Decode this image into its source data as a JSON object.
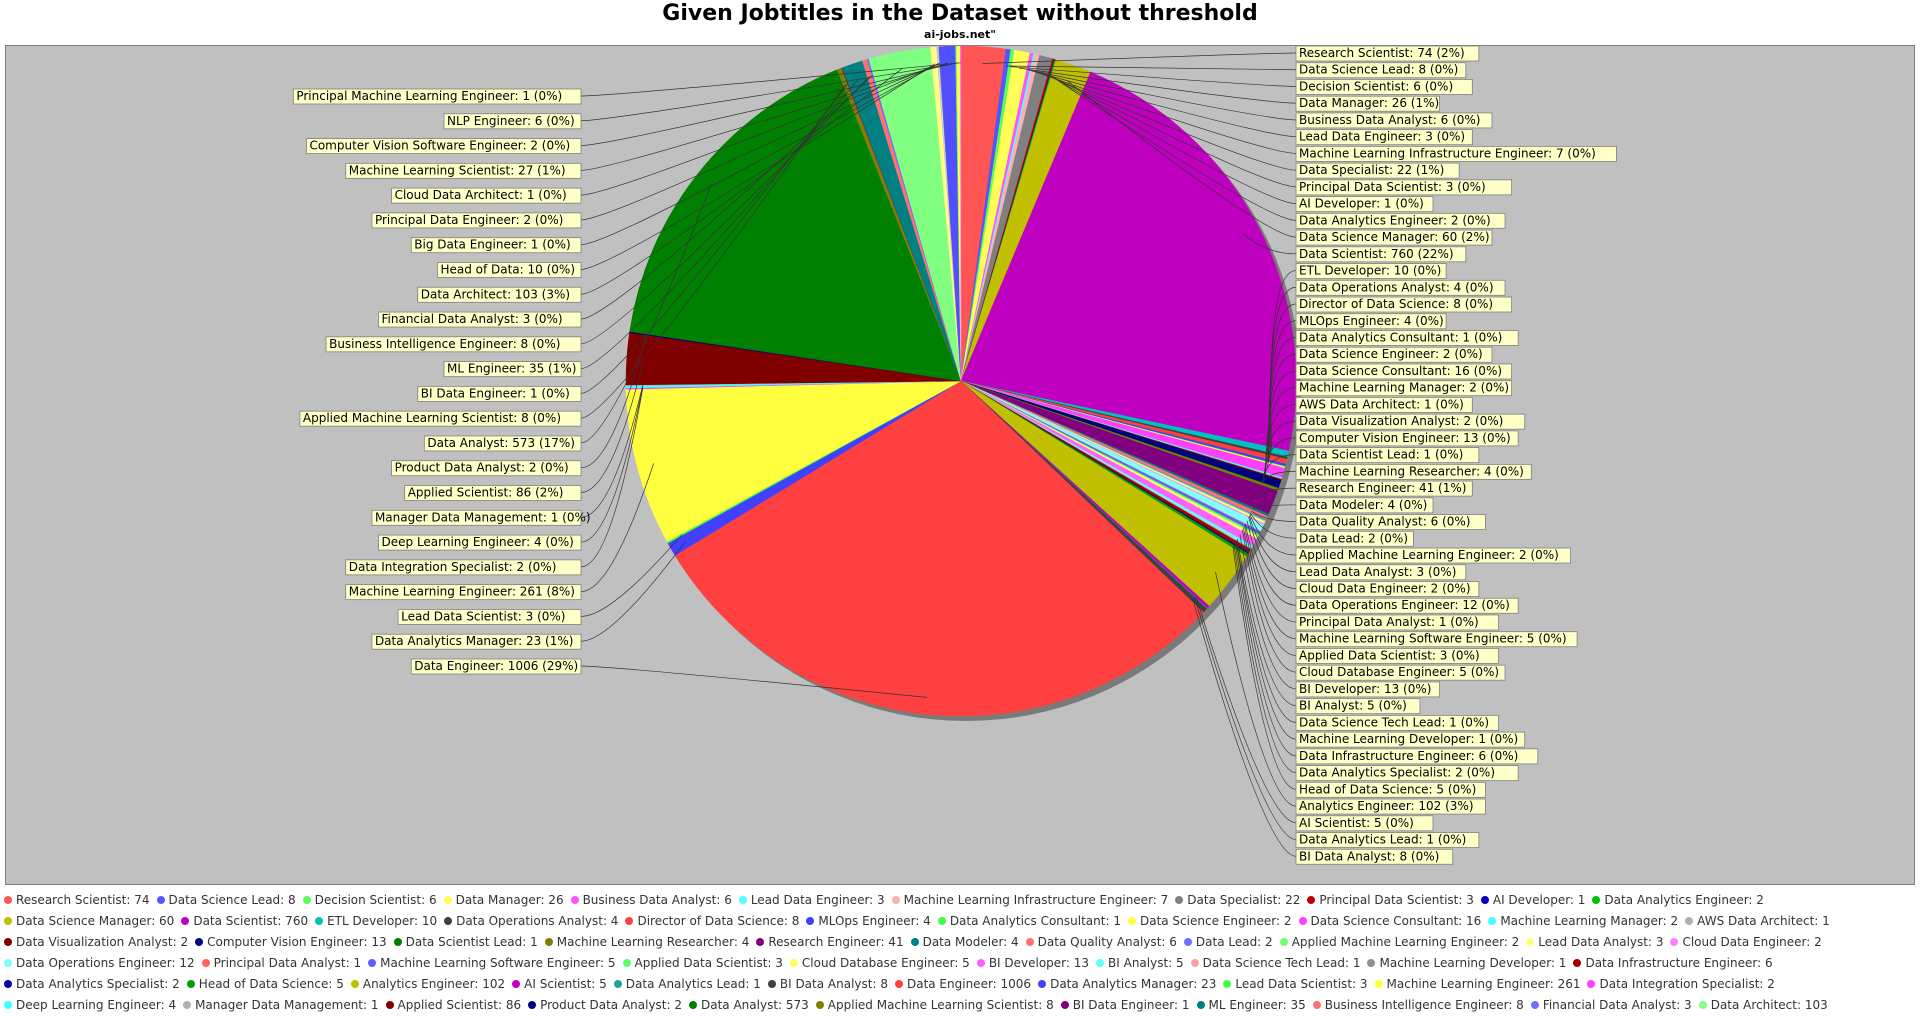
{
  "chart_data": {
    "type": "pie",
    "title": "Given Jobtitles in the Dataset without threshold",
    "subtitle": "ai-jobs.net\"",
    "legend_position": "bottom",
    "slices": [
      {
        "label": "Research Scientist",
        "value": 74,
        "pct": "2%",
        "color": "#ff5555"
      },
      {
        "label": "Data Science Lead",
        "value": 8,
        "pct": "0%",
        "color": "#5555ff"
      },
      {
        "label": "Decision Scientist",
        "value": 6,
        "pct": "0%",
        "color": "#55ff55"
      },
      {
        "label": "Data Manager",
        "value": 26,
        "pct": "1%",
        "color": "#ffff55"
      },
      {
        "label": "Business Data Analyst",
        "value": 6,
        "pct": "0%",
        "color": "#ff55ff"
      },
      {
        "label": "Lead Data Engineer",
        "value": 3,
        "pct": "0%",
        "color": "#55ffff"
      },
      {
        "label": "Machine Learning Infrastructure Engineer",
        "value": 7,
        "pct": "0%",
        "color": "#ffafaf"
      },
      {
        "label": "Data Specialist",
        "value": 22,
        "pct": "1%",
        "color": "#808080"
      },
      {
        "label": "Principal Data Scientist",
        "value": 3,
        "pct": "0%",
        "color": "#c00000"
      },
      {
        "label": "AI Developer",
        "value": 1,
        "pct": "0%",
        "color": "#0000c0"
      },
      {
        "label": "Data Analytics Engineer",
        "value": 2,
        "pct": "0%",
        "color": "#00c000"
      },
      {
        "label": "Data Science Manager",
        "value": 60,
        "pct": "2%",
        "color": "#c0c000"
      },
      {
        "label": "Data Scientist",
        "value": 760,
        "pct": "22%",
        "color": "#c000c0"
      },
      {
        "label": "ETL Developer",
        "value": 10,
        "pct": "0%",
        "color": "#00c0c0"
      },
      {
        "label": "Data Operations Analyst",
        "value": 4,
        "pct": "0%",
        "color": "#404040"
      },
      {
        "label": "Director of Data Science",
        "value": 8,
        "pct": "0%",
        "color": "#ff4040"
      },
      {
        "label": "MLOps Engineer",
        "value": 4,
        "pct": "0%",
        "color": "#4040ff"
      },
      {
        "label": "Data Analytics Consultant",
        "value": 1,
        "pct": "0%",
        "color": "#40ff40"
      },
      {
        "label": "Data Science Engineer",
        "value": 2,
        "pct": "0%",
        "color": "#ffff40"
      },
      {
        "label": "Data Science Consultant",
        "value": 16,
        "pct": "0%",
        "color": "#ff40ff"
      },
      {
        "label": "Machine Learning Manager",
        "value": 2,
        "pct": "0%",
        "color": "#40ffff"
      },
      {
        "label": "AWS Data Architect",
        "value": 1,
        "pct": "0%",
        "color": "#b0b0b0"
      },
      {
        "label": "Data Visualization Analyst",
        "value": 2,
        "pct": "0%",
        "color": "#800000"
      },
      {
        "label": "Computer Vision Engineer",
        "value": 13,
        "pct": "0%",
        "color": "#000080"
      },
      {
        "label": "Data Scientist Lead",
        "value": 1,
        "pct": "0%",
        "color": "#008000"
      },
      {
        "label": "Machine Learning Researcher",
        "value": 4,
        "pct": "0%",
        "color": "#808000"
      },
      {
        "label": "Research Engineer",
        "value": 41,
        "pct": "1%",
        "color": "#800080"
      },
      {
        "label": "Data Modeler",
        "value": 4,
        "pct": "0%",
        "color": "#008080"
      },
      {
        "label": "Data Quality Analyst",
        "value": 6,
        "pct": "0%",
        "color": "#ff7070"
      },
      {
        "label": "Data Lead",
        "value": 2,
        "pct": "0%",
        "color": "#7070ff"
      },
      {
        "label": "Applied Machine Learning Engineer",
        "value": 2,
        "pct": "0%",
        "color": "#70ff70"
      },
      {
        "label": "Lead Data Analyst",
        "value": 3,
        "pct": "0%",
        "color": "#ffff80"
      },
      {
        "label": "Cloud Data Engineer",
        "value": 2,
        "pct": "0%",
        "color": "#ff80ff"
      },
      {
        "label": "Data Operations Engineer",
        "value": 12,
        "pct": "0%",
        "color": "#80ffff"
      },
      {
        "label": "Principal Data Analyst",
        "value": 1,
        "pct": "0%",
        "color": "#ff6060"
      },
      {
        "label": "Machine Learning Software Engineer",
        "value": 5,
        "pct": "0%",
        "color": "#6060ff"
      },
      {
        "label": "Applied Data Scientist",
        "value": 3,
        "pct": "0%",
        "color": "#60ff60"
      },
      {
        "label": "Cloud Database Engineer",
        "value": 5,
        "pct": "0%",
        "color": "#ffff60"
      },
      {
        "label": "BI Developer",
        "value": 13,
        "pct": "0%",
        "color": "#ff60ff"
      },
      {
        "label": "BI Analyst",
        "value": 5,
        "pct": "0%",
        "color": "#60ffff"
      },
      {
        "label": "Data Science Tech Lead",
        "value": 1,
        "pct": "0%",
        "color": "#ffa0a0"
      },
      {
        "label": "Machine Learning Developer",
        "value": 1,
        "pct": "0%",
        "color": "#909090"
      },
      {
        "label": "Data Infrastructure Engineer",
        "value": 6,
        "pct": "0%",
        "color": "#a00000"
      },
      {
        "label": "Data Analytics Specialist",
        "value": 2,
        "pct": "0%",
        "color": "#0000a0"
      },
      {
        "label": "Head of Data Science",
        "value": 5,
        "pct": "0%",
        "color": "#00a000"
      },
      {
        "label": "Analytics Engineer",
        "value": 102,
        "pct": "3%",
        "color": "#c0c000"
      },
      {
        "label": "AI Scientist",
        "value": 5,
        "pct": "0%",
        "color": "#c000c0"
      },
      {
        "label": "Data Analytics Lead",
        "value": 1,
        "pct": "0%",
        "color": "#20a0a0"
      },
      {
        "label": "BI Data Analyst",
        "value": 8,
        "pct": "0%",
        "color": "#404040"
      },
      {
        "label": "Data Engineer",
        "value": 1006,
        "pct": "29%",
        "color": "#ff4040"
      },
      {
        "label": "Data Analytics Manager",
        "value": 23,
        "pct": "1%",
        "color": "#4040ff"
      },
      {
        "label": "Lead Data Scientist",
        "value": 3,
        "pct": "0%",
        "color": "#40ff40"
      },
      {
        "label": "Machine Learning Engineer",
        "value": 261,
        "pct": "8%",
        "color": "#ffff40"
      },
      {
        "label": "Data Integration Specialist",
        "value": 2,
        "pct": "0%",
        "color": "#ff40ff"
      },
      {
        "label": "Deep Learning Engineer",
        "value": 4,
        "pct": "0%",
        "color": "#40ffff"
      },
      {
        "label": "Manager Data Management",
        "value": 1,
        "pct": "0%",
        "color": "#b0b0b0"
      },
      {
        "label": "Applied Scientist",
        "value": 86,
        "pct": "2%",
        "color": "#800000"
      },
      {
        "label": "Product Data Analyst",
        "value": 2,
        "pct": "0%",
        "color": "#000080"
      },
      {
        "label": "Data Analyst",
        "value": 573,
        "pct": "17%",
        "color": "#008000"
      },
      {
        "label": "Applied Machine Learning Scientist",
        "value": 8,
        "pct": "0%",
        "color": "#808000"
      },
      {
        "label": "BI Data Engineer",
        "value": 1,
        "pct": "0%",
        "color": "#800080"
      },
      {
        "label": "ML Engineer",
        "value": 35,
        "pct": "1%",
        "color": "#008080"
      },
      {
        "label": "Business Intelligence Engineer",
        "value": 8,
        "pct": "0%",
        "color": "#ff7070"
      },
      {
        "label": "Financial Data Analyst",
        "value": 3,
        "pct": "0%",
        "color": "#7070ff"
      },
      {
        "label": "Data Architect",
        "value": 103,
        "pct": "3%",
        "color": "#80ff80"
      },
      {
        "label": "Head of Data",
        "value": 10,
        "pct": "0%",
        "color": "#ffff80"
      },
      {
        "label": "Big Data Engineer",
        "value": 1,
        "pct": "0%",
        "color": "#ff80ff"
      },
      {
        "label": "Principal Data Engineer",
        "value": 2,
        "pct": "0%",
        "color": "#80ffff"
      },
      {
        "label": "Cloud Data Architect",
        "value": 1,
        "pct": "0%",
        "color": "#ff6060"
      },
      {
        "label": "Machine Learning Scientist",
        "value": 27,
        "pct": "1%",
        "color": "#5050ff"
      },
      {
        "label": "Computer Vision Software Engineer",
        "value": 2,
        "pct": "0%",
        "color": "#60ff60"
      },
      {
        "label": "NLP Engineer",
        "value": 6,
        "pct": "0%",
        "color": "#ffff60"
      },
      {
        "label": "Principal Machine Learning Engineer",
        "value": 1,
        "pct": "0%",
        "color": "#ff60ff"
      }
    ]
  }
}
